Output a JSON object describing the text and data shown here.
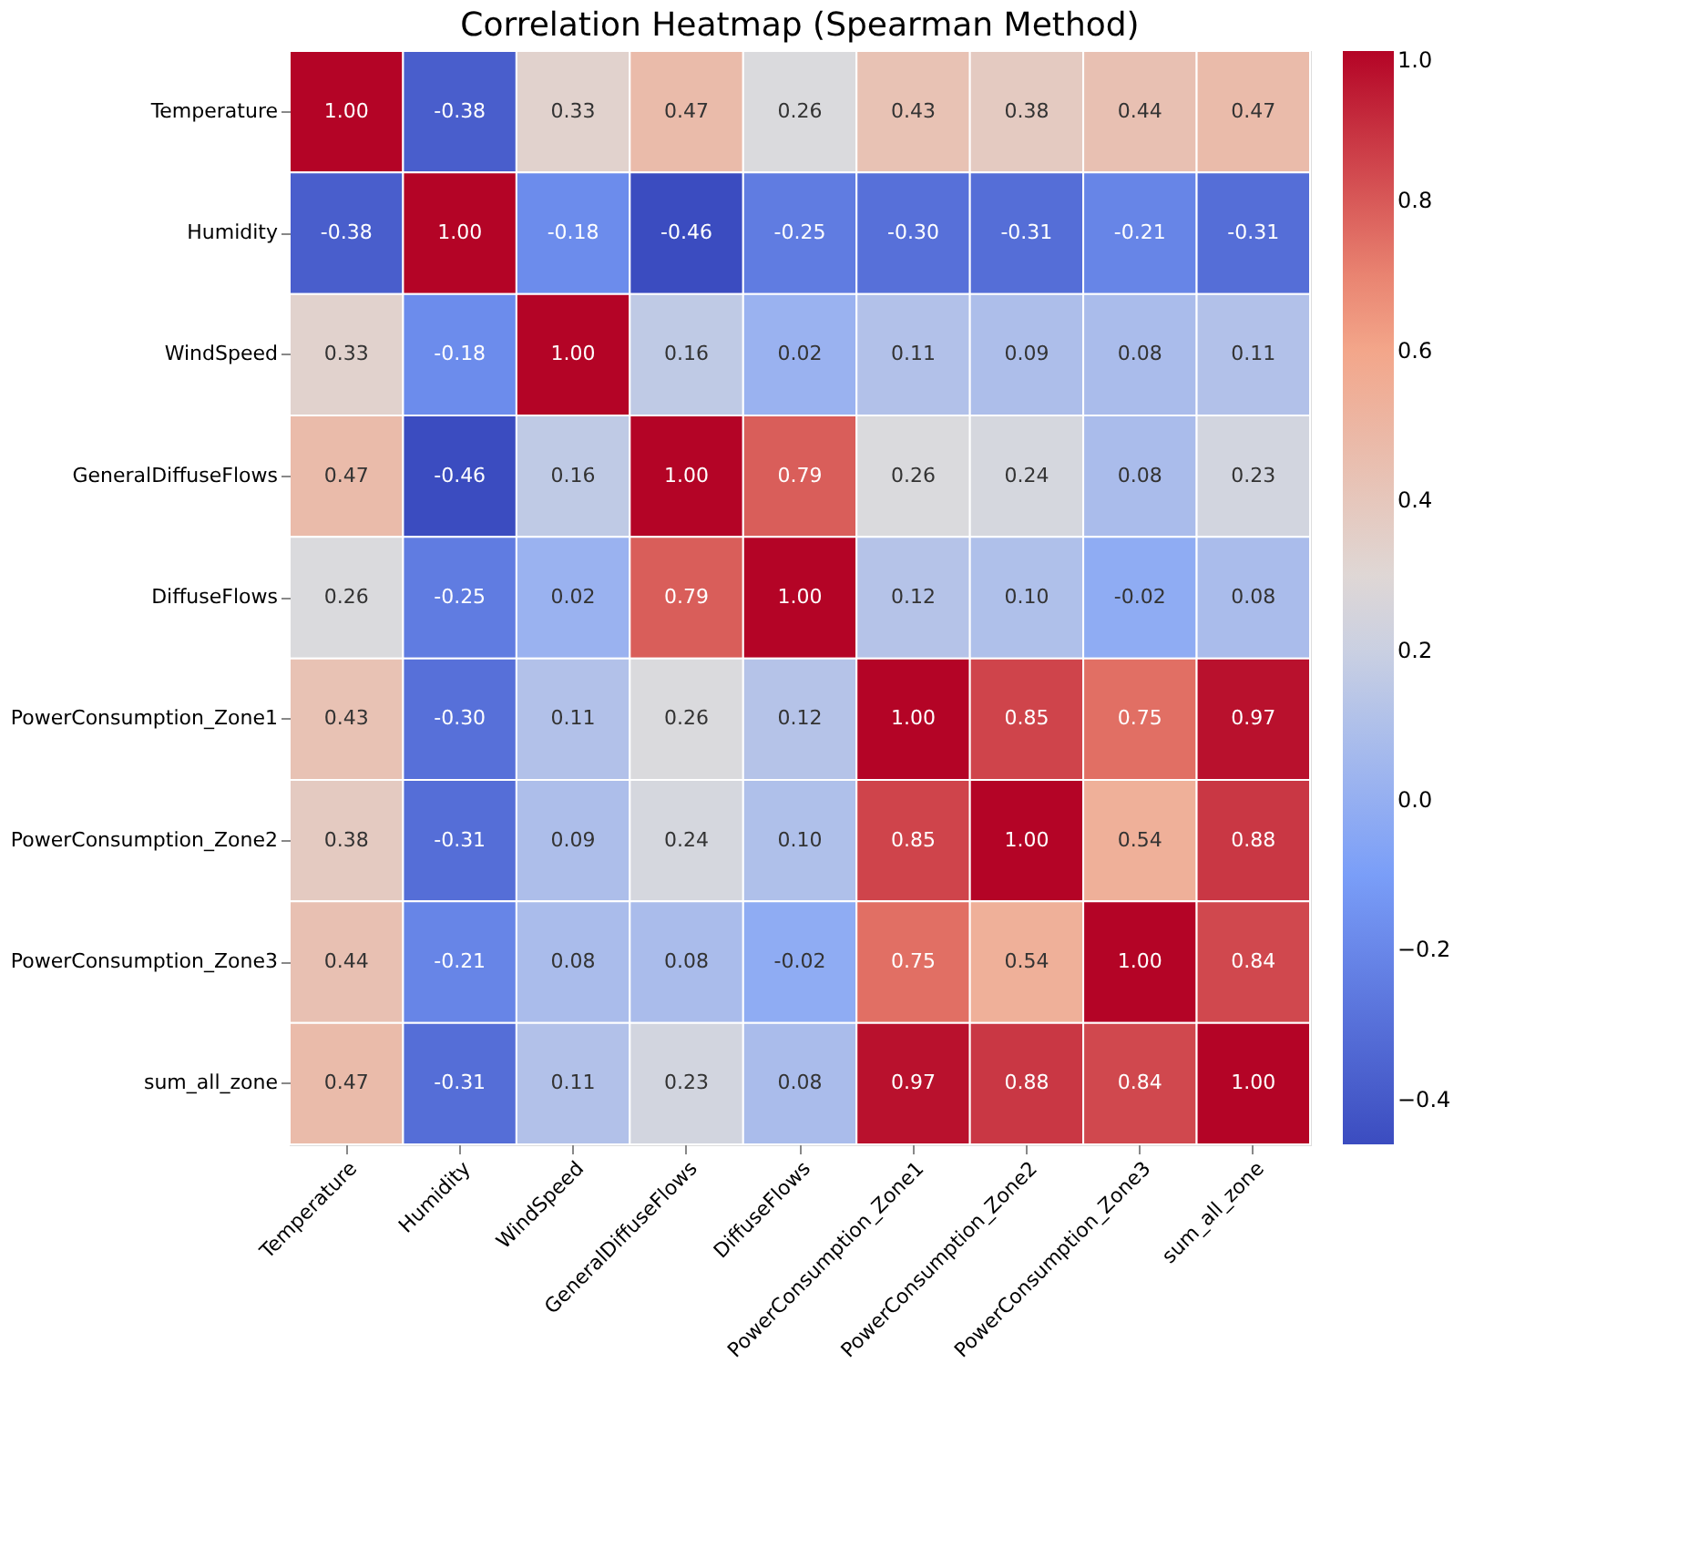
{
  "chart_data": {
    "type": "heatmap",
    "title": "Correlation Heatmap (Spearman Method)",
    "categories": [
      "Temperature",
      "Humidity",
      "WindSpeed",
      "GeneralDiffuseFlows",
      "DiffuseFlows",
      "PowerConsumption_Zone1",
      "PowerConsumption_Zone2",
      "PowerConsumption_Zone3",
      "sum_all_zone"
    ],
    "y_categories": [
      "Temperature",
      "Humidity",
      "WindSpeed",
      "GeneralDiffuseFlows",
      "DiffuseFlows",
      "PowerConsumption_Zone1",
      "PowerConsumption_Zone2",
      "PowerConsumption_Zone3",
      "sum_all_zone"
    ],
    "cells": [
      [
        1.0,
        -0.38,
        0.33,
        0.47,
        0.26,
        0.43,
        0.38,
        0.44,
        0.47
      ],
      [
        -0.38,
        1.0,
        -0.18,
        -0.46,
        -0.25,
        -0.3,
        -0.31,
        -0.21,
        -0.31
      ],
      [
        0.33,
        -0.18,
        1.0,
        0.16,
        0.02,
        0.11,
        0.09,
        0.08,
        0.11
      ],
      [
        0.47,
        -0.46,
        0.16,
        1.0,
        0.79,
        0.26,
        0.24,
        0.08,
        0.23
      ],
      [
        0.26,
        -0.25,
        0.02,
        0.79,
        1.0,
        0.12,
        0.1,
        -0.02,
        0.08
      ],
      [
        0.43,
        -0.3,
        0.11,
        0.26,
        0.12,
        1.0,
        0.85,
        0.75,
        0.97
      ],
      [
        0.38,
        -0.31,
        0.09,
        0.24,
        0.1,
        0.85,
        1.0,
        0.54,
        0.88
      ],
      [
        0.44,
        -0.21,
        0.08,
        0.08,
        -0.02,
        0.75,
        0.54,
        1.0,
        0.84
      ],
      [
        0.47,
        -0.31,
        0.11,
        0.23,
        0.08,
        0.97,
        0.88,
        0.84,
        1.0
      ]
    ],
    "cell_labels": [
      [
        "1.00",
        "-0.38",
        "0.33",
        "0.47",
        "0.26",
        "0.43",
        "0.38",
        "0.44",
        "0.47"
      ],
      [
        "-0.38",
        "1.00",
        "-0.18",
        "-0.46",
        "-0.25",
        "-0.30",
        "-0.31",
        "-0.21",
        "-0.31"
      ],
      [
        "0.33",
        "-0.18",
        "1.00",
        "0.16",
        "0.02",
        "0.11",
        "0.09",
        "0.08",
        "0.11"
      ],
      [
        "0.47",
        "-0.46",
        "0.16",
        "1.00",
        "0.79",
        "0.26",
        "0.24",
        "0.08",
        "0.23"
      ],
      [
        "0.26",
        "-0.25",
        "0.02",
        "0.79",
        "1.00",
        "0.12",
        "0.10",
        "-0.02",
        "0.08"
      ],
      [
        "0.43",
        "-0.30",
        "0.11",
        "0.26",
        "0.12",
        "1.00",
        "0.85",
        "0.75",
        "0.97"
      ],
      [
        "0.38",
        "-0.31",
        "0.09",
        "0.24",
        "0.10",
        "0.85",
        "1.00",
        "0.54",
        "0.88"
      ],
      [
        "0.44",
        "-0.21",
        "0.08",
        "0.08",
        "-0.02",
        "0.75",
        "0.54",
        "1.00",
        "0.84"
      ],
      [
        "0.47",
        "-0.31",
        "0.11",
        "0.23",
        "0.08",
        "0.97",
        "0.88",
        "0.84",
        "1.00"
      ]
    ],
    "clim": [
      -0.46,
      1.0
    ],
    "cticks": [
      {
        "value": -0.4,
        "label": "−0.4"
      },
      {
        "value": -0.2,
        "label": "−0.2"
      },
      {
        "value": 0,
        "label": "0.0"
      },
      0.2,
      0.4,
      0.6,
      0.8,
      {
        "value": 1,
        "label": "1.0"
      }
    ],
    "colors": [
      "#3b4cc0",
      "#7b9ff9",
      "#dddcdc",
      "#f5a081",
      "#b40426"
    ],
    "data_labels": true
  }
}
